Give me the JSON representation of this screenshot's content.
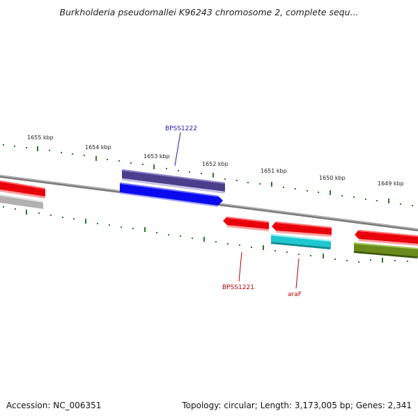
{
  "title": "Burkholderia pseudomallei K96243 chromosome 2, complete sequ...",
  "footer": {
    "accession": "Accession: NC_006351",
    "summary": "Topology: circular; Length: 3,173,005 bp; Genes: 2,341"
  },
  "kbp_labels": [
    "1655 kbp",
    "1654 kbp",
    "1653 kbp",
    "1652 kbp",
    "1651 kbp",
    "1650 kbp",
    "1649 kbp"
  ],
  "gene_labels": {
    "bpss1222": "BPSS1222",
    "bpss1221": "BPSS1221",
    "araf": "araF"
  },
  "colors": {
    "backbone": "#888888",
    "tick": "#2a7a2a",
    "forward_gene": "#0a0aee",
    "forward_gene_dark": "#4b3f8c",
    "reverse_gene": "#e8000a",
    "cyan_gene": "#1ec8d0",
    "olive_gene": "#6a8a1a",
    "grey_gene": "#b0b0b0",
    "label_blue": "#1a1aaa",
    "label_red": "#b00000"
  }
}
